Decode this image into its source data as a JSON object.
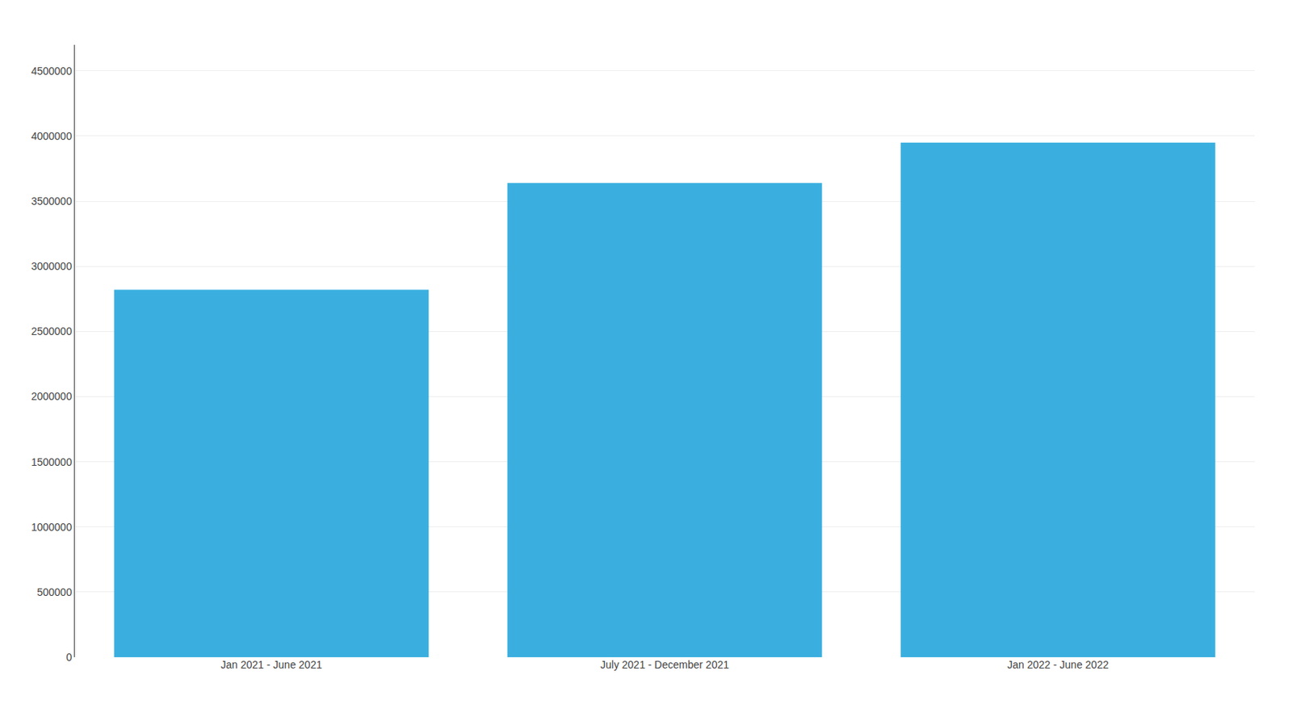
{
  "chart_data": {
    "type": "bar",
    "categories": [
      "Jan 2021 - June 2021",
      "July 2021 - December 2021",
      "Jan 2022 - June 2022"
    ],
    "values": [
      2820000,
      3640000,
      3950000
    ],
    "color": "#3AAFDF",
    "ylim": [
      0,
      4700000
    ],
    "yticks": [
      0,
      500000,
      1000000,
      1500000,
      2000000,
      2500000,
      3000000,
      3500000,
      4000000,
      4500000
    ],
    "grid": true
  }
}
